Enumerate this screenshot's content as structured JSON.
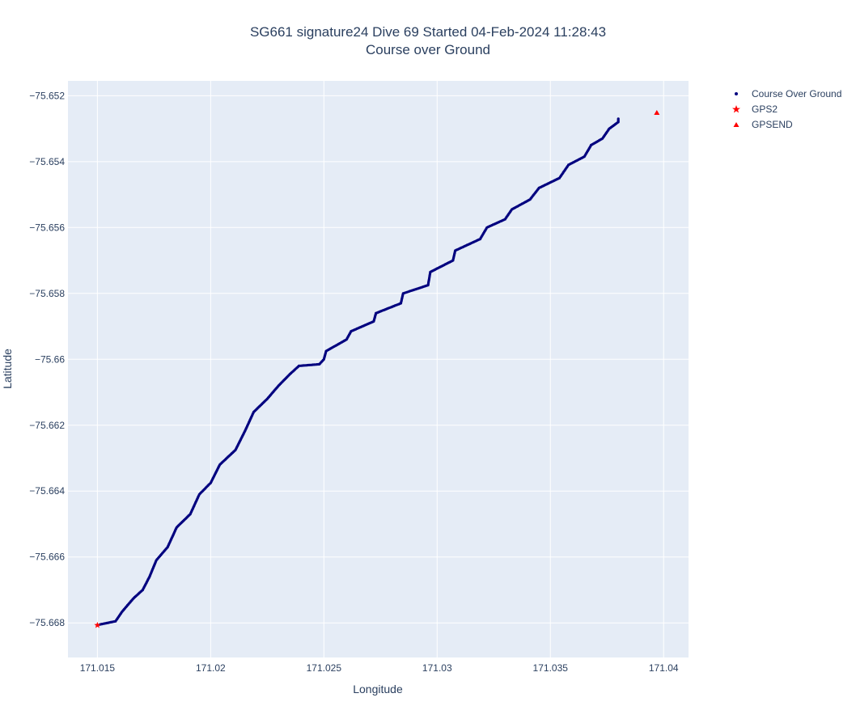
{
  "chart_data": {
    "type": "scatter",
    "title_line1": "SG661 signature24 Dive 69 Started 04-Feb-2024 11:28:43",
    "title_line2": "Course over Ground",
    "xlabel": "Longitude",
    "ylabel": "Latitude",
    "xlim": [
      171.0137,
      171.0411
    ],
    "ylim": [
      -75.66905,
      -75.65155
    ],
    "xticks": [
      171.015,
      171.02,
      171.025,
      171.03,
      171.035,
      171.04
    ],
    "xtick_labels": [
      "171.015",
      "171.02",
      "171.025",
      "171.03",
      "171.035",
      "171.04"
    ],
    "yticks": [
      -75.652,
      -75.654,
      -75.656,
      -75.658,
      -75.66,
      -75.662,
      -75.664,
      -75.666,
      -75.668
    ],
    "ytick_labels": [
      "−75.652",
      "−75.654",
      "−75.656",
      "−75.658",
      "−75.66",
      "−75.662",
      "−75.664",
      "−75.666",
      "−75.668"
    ],
    "grid": true,
    "legend_position": "top-right",
    "series": [
      {
        "name": "Course Over Ground",
        "marker": "dot",
        "color": "#00007f",
        "path": [
          [
            171.0151,
            -75.66805
          ],
          [
            171.0158,
            -75.66795
          ],
          [
            171.0161,
            -75.66765
          ],
          [
            171.0166,
            -75.66725
          ],
          [
            171.017,
            -75.667
          ],
          [
            171.0173,
            -75.6666
          ],
          [
            171.0176,
            -75.6661
          ],
          [
            171.0181,
            -75.6657
          ],
          [
            171.0185,
            -75.6651
          ],
          [
            171.0191,
            -75.6647
          ],
          [
            171.0195,
            -75.6641
          ],
          [
            171.02,
            -75.66375
          ],
          [
            171.0204,
            -75.6632
          ],
          [
            171.0211,
            -75.66275
          ],
          [
            171.0215,
            -75.6622
          ],
          [
            171.0219,
            -75.6616
          ],
          [
            171.0225,
            -75.6612
          ],
          [
            171.023,
            -75.6608
          ],
          [
            171.0235,
            -75.66045
          ],
          [
            171.0239,
            -75.6602
          ],
          [
            171.0248,
            -75.66015
          ],
          [
            171.025,
            -75.66
          ],
          [
            171.0251,
            -75.65975
          ],
          [
            171.026,
            -75.6594
          ],
          [
            171.0262,
            -75.65915
          ],
          [
            171.0272,
            -75.65885
          ],
          [
            171.0273,
            -75.6586
          ],
          [
            171.0284,
            -75.6583
          ],
          [
            171.0285,
            -75.658
          ],
          [
            171.0296,
            -75.65775
          ],
          [
            171.0297,
            -75.65735
          ],
          [
            171.0307,
            -75.657
          ],
          [
            171.0308,
            -75.6567
          ],
          [
            171.0319,
            -75.65635
          ],
          [
            171.0322,
            -75.656
          ],
          [
            171.033,
            -75.65575
          ],
          [
            171.0333,
            -75.65545
          ],
          [
            171.0341,
            -75.65515
          ],
          [
            171.0345,
            -75.6548
          ],
          [
            171.0354,
            -75.6545
          ],
          [
            171.0358,
            -75.6541
          ],
          [
            171.0365,
            -75.65385
          ],
          [
            171.0368,
            -75.6535
          ],
          [
            171.0373,
            -75.6533
          ],
          [
            171.0376,
            -75.653
          ],
          [
            171.038,
            -75.6528
          ],
          [
            171.038,
            -75.6527
          ]
        ]
      },
      {
        "name": "GPS2",
        "marker": "star",
        "color": "#ff0000",
        "x": 171.015,
        "y": -75.66807
      },
      {
        "name": "GPSEND",
        "marker": "triangle-up",
        "color": "#ff0000",
        "x": 171.0397,
        "y": -75.65252
      }
    ]
  }
}
